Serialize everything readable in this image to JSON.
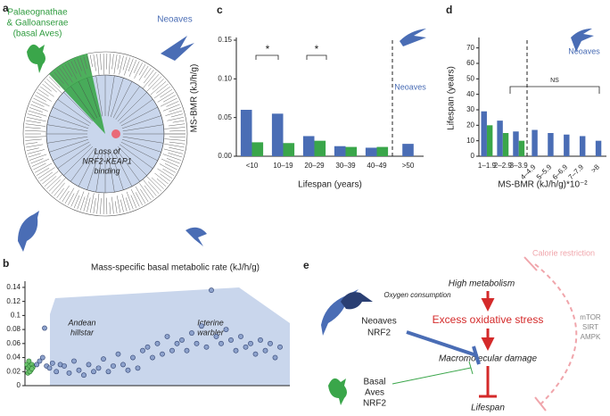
{
  "panel_labels": [
    "a",
    "b",
    "c",
    "d",
    "e"
  ],
  "tree": {
    "basal_label": [
      "Palaeognathae",
      "& Galloanserae",
      "(basal Aves)"
    ],
    "neoaves_label": "Neoaves",
    "loss_label": [
      "Loss of",
      "NRF2-KEAP1",
      "binding"
    ]
  },
  "diagram": {
    "calorie_restriction": "Calorie restriction",
    "high_metabolism": "High metabolism",
    "oxygen_consumption": "Oxygen consumption",
    "oxidative_stress": "Excess oxidative stress",
    "neoaves_nrf2": [
      "Neoaves",
      "NRF2"
    ],
    "macromolecular_damage": "Macromolecular damage",
    "basal_nrf2": [
      "Basal",
      "Aves",
      "NRF2"
    ],
    "pathways": [
      "mTOR",
      "SIRT",
      "AMPK"
    ],
    "lifespan": "Lifespan"
  },
  "chart_data": [
    {
      "type": "bar",
      "x_label": "Lifespan (years)",
      "y_label": "MS-BMR (kJ/h/g)",
      "categories": [
        "<10",
        "10–19",
        "20–29",
        "30–39",
        "40–49",
        ">50"
      ],
      "series": [
        {
          "color": "#4a6db5",
          "values": [
            0.06,
            0.055,
            0.026,
            0.013,
            0.011,
            0.016
          ]
        },
        {
          "color": "#3aa64a",
          "values": [
            0.018,
            0.017,
            0.02,
            0.012,
            0.012,
            null
          ]
        }
      ],
      "ylim": [
        0,
        0.15
      ],
      "yticks": [
        {
          "value": 0,
          "label": "0.00"
        },
        {
          "value": 0.05,
          "label": "0.05"
        },
        {
          "value": 0.1,
          "label": "0.10"
        },
        {
          "value": 0.15,
          "label": "0.15"
        }
      ],
      "annotations": [
        "*",
        "*",
        "Neoaves"
      ]
    },
    {
      "type": "bar",
      "x_label": "MS-BMR (kJ/h/g)*10⁻²",
      "y_label": "Lifespan (years)",
      "categories": [
        "1–1.9",
        "2–2.9",
        "3–3.9",
        "4–4.9",
        "5–5.9",
        "6–6.9",
        "7–7.9",
        ">8"
      ],
      "series": [
        {
          "color": "#4a6db5",
          "values": [
            29,
            23,
            16,
            17,
            15,
            14,
            13,
            10
          ]
        },
        {
          "color": "#3aa64a",
          "values": [
            20,
            15,
            10,
            null,
            null,
            null,
            null,
            null
          ]
        }
      ],
      "ylim": [
        0,
        75
      ],
      "yticks": [
        0,
        10,
        20,
        30,
        40,
        50,
        60,
        70
      ],
      "annotations": [
        "NS",
        "Neoaves"
      ]
    },
    {
      "type": "scatter",
      "title": "Mass-specific basal metabolic rate (kJ/h/g)",
      "xlim": [
        0,
        270
      ],
      "ylim": [
        0,
        0.145
      ],
      "yticks": [
        0,
        0.02,
        0.04,
        0.06,
        0.08,
        0.1,
        0.12,
        0.14
      ],
      "series": [
        {
          "color": "#6cc26c",
          "x": [
            2,
            3,
            4,
            5,
            6,
            7,
            8,
            3,
            5,
            7
          ],
          "values": [
            0.03,
            0.025,
            0.035,
            0.028,
            0.022,
            0.03,
            0.026,
            0.018,
            0.02,
            0.024
          ]
        },
        {
          "color": "#8da2cc",
          "x": [
            12,
            15,
            18,
            20,
            22,
            25,
            28,
            32,
            36,
            40,
            45,
            50,
            55,
            60,
            65,
            70,
            75,
            80,
            85,
            90,
            95,
            100,
            105,
            110,
            115,
            120,
            125,
            130,
            135,
            140,
            145,
            150,
            155,
            160,
            165,
            170,
            175,
            180,
            185,
            190,
            195,
            200,
            205,
            210,
            215,
            220,
            225,
            230,
            235,
            240,
            245,
            250,
            255,
            260
          ],
          "values": [
            0.03,
            0.035,
            0.04,
            0.082,
            0.028,
            0.025,
            0.032,
            0.02,
            0.03,
            0.028,
            0.018,
            0.035,
            0.022,
            0.015,
            0.03,
            0.02,
            0.025,
            0.038,
            0.02,
            0.028,
            0.045,
            0.03,
            0.022,
            0.04,
            0.025,
            0.05,
            0.055,
            0.04,
            0.06,
            0.045,
            0.07,
            0.05,
            0.06,
            0.065,
            0.05,
            0.075,
            0.06,
            0.085,
            0.055,
            0.136,
            0.07,
            0.06,
            0.08,
            0.065,
            0.05,
            0.07,
            0.055,
            0.06,
            0.045,
            0.065,
            0.05,
            0.06,
            0.04,
            0.055
          ]
        }
      ],
      "annotations": [
        [
          "Andean",
          "hillstar"
        ],
        [
          "Icterine",
          "warbler"
        ]
      ]
    }
  ]
}
